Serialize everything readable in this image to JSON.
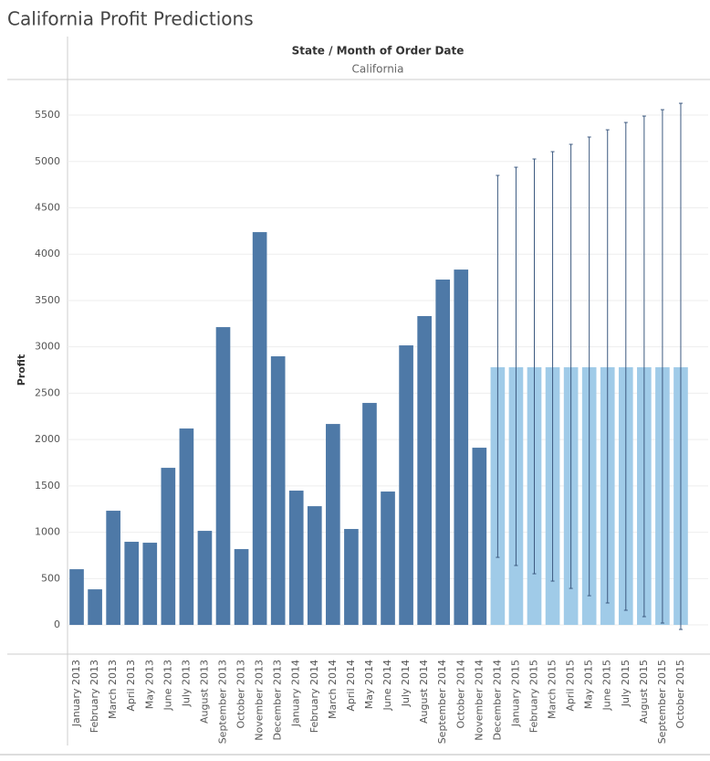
{
  "chart_data": {
    "type": "bar",
    "title": "California Profit Predictions",
    "header": "State / Month of Order Date",
    "column_label": "California",
    "y_label": "Profit",
    "categories": [
      "January 2013",
      "February 2013",
      "March 2013",
      "April 2013",
      "May 2013",
      "June 2013",
      "July 2013",
      "August 2013",
      "September 2013",
      "October 2013",
      "November 2013",
      "December 2013",
      "January 2014",
      "February 2014",
      "March 2014",
      "April 2014",
      "May 2014",
      "June 2014",
      "July 2014",
      "August 2014",
      "September 2014",
      "October 2014",
      "November 2014",
      "December 2014",
      "January 2015",
      "February 2015",
      "March 2015",
      "April 2015",
      "May 2015",
      "June 2015",
      "July 2015",
      "August 2015",
      "September 2015",
      "October 2015"
    ],
    "values": [
      601,
      384,
      1232,
      897,
      887,
      1695,
      2119,
      1015,
      3213,
      818,
      4238,
      2898,
      1449,
      1281,
      2168,
      1035,
      2395,
      1439,
      3016,
      3332,
      3726,
      3834,
      1912,
      2780,
      2780,
      2780,
      2780,
      2780,
      2780,
      2780,
      2780,
      2780,
      2780,
      2780
    ],
    "error_low": [
      null,
      null,
      null,
      null,
      null,
      null,
      null,
      null,
      null,
      null,
      null,
      null,
      null,
      null,
      null,
      null,
      null,
      null,
      null,
      null,
      null,
      null,
      null,
      729,
      641,
      552,
      473,
      394,
      315,
      237,
      158,
      89,
      20,
      -49
    ],
    "error_high": [
      null,
      null,
      null,
      null,
      null,
      null,
      null,
      null,
      null,
      null,
      null,
      null,
      null,
      null,
      null,
      null,
      null,
      null,
      null,
      null,
      null,
      null,
      null,
      4850,
      4938,
      5027,
      5106,
      5185,
      5264,
      5342,
      5421,
      5490,
      5559,
      5628
    ],
    "colors": [
      "#4e79a7",
      "#4e79a7",
      "#4e79a7",
      "#4e79a7",
      "#4e79a7",
      "#4e79a7",
      "#4e79a7",
      "#4e79a7",
      "#4e79a7",
      "#4e79a7",
      "#4e79a7",
      "#4e79a7",
      "#4e79a7",
      "#4e79a7",
      "#4e79a7",
      "#4e79a7",
      "#4e79a7",
      "#4e79a7",
      "#4e79a7",
      "#4e79a7",
      "#4e79a7",
      "#4e79a7",
      "#4e79a7",
      "#a0cbe8",
      "#a0cbe8",
      "#a0cbe8",
      "#a0cbe8",
      "#a0cbe8",
      "#a0cbe8",
      "#a0cbe8",
      "#a0cbe8",
      "#a0cbe8",
      "#a0cbe8",
      "#a0cbe8"
    ],
    "error_color": "#3d5a80",
    "ylim": [
      -315,
      5875
    ],
    "yticks": [
      0,
      500,
      1000,
      1500,
      2000,
      2500,
      3000,
      3500,
      4000,
      4500,
      5000,
      5500
    ],
    "grid": true
  }
}
